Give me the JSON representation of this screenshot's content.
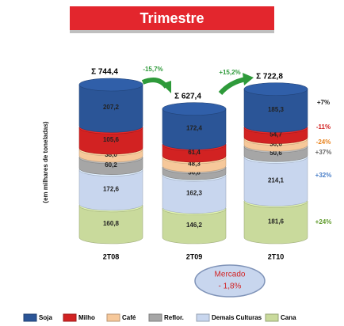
{
  "chart_data": {
    "type": "stacked-cylinder",
    "title": "Trimestre",
    "y_label": "(em milhares de toneladas)",
    "categories": [
      "2T08",
      "2T09",
      "2T10"
    ],
    "series": [
      {
        "name": "Soja",
        "color": "#2b5597",
        "values": [
          207.2,
          172.4,
          185.3
        ],
        "value_labels": [
          "207,2",
          "172,4",
          "185,3"
        ]
      },
      {
        "name": "Milho",
        "color": "#d22222",
        "values": [
          105.6,
          61.4,
          54.7
        ],
        "value_labels": [
          "105,6",
          "61,4",
          "54,7"
        ]
      },
      {
        "name": "Café",
        "color": "#f6c89a",
        "values": [
          38.0,
          48.3,
          36.6
        ],
        "value_labels": [
          "38,0",
          "48,3",
          "36,6"
        ]
      },
      {
        "name": "Reflor.",
        "color": "#a6a6a6",
        "values": [
          60.2,
          36.8,
          50.6
        ],
        "value_labels": [
          "60,2",
          "36,8",
          "50,6"
        ]
      },
      {
        "name": "Demais Culturas",
        "color": "#c8d6ee",
        "values": [
          172.6,
          162.3,
          214.1
        ],
        "value_labels": [
          "172,6",
          "162,3",
          "214,1"
        ]
      },
      {
        "name": "Cana",
        "color": "#c9da9c",
        "values": [
          160.8,
          146.2,
          181.6
        ],
        "value_labels": [
          "160,8",
          "146,2",
          "181,6"
        ]
      }
    ],
    "totals": [
      "Σ 744,4",
      "Σ 627,4",
      "Σ 722,8"
    ],
    "changes": [
      {
        "text": "-15,7%",
        "color": "#2e9a3a"
      },
      {
        "text": "+15,2%",
        "color": "#2e9a3a"
      }
    ],
    "series_changes": [
      {
        "text": "+7%",
        "color": "#222222"
      },
      {
        "text": "-11%",
        "color": "#d22222"
      },
      {
        "text": "-24%",
        "color": "#e8831e"
      },
      {
        "text": "+37%",
        "color": "#666666"
      },
      {
        "text": "+32%",
        "color": "#4a7fc8"
      },
      {
        "text": "+24%",
        "color": "#5e9a2a"
      }
    ],
    "market": {
      "label": "Mercado",
      "value": "- 1,8%"
    }
  }
}
